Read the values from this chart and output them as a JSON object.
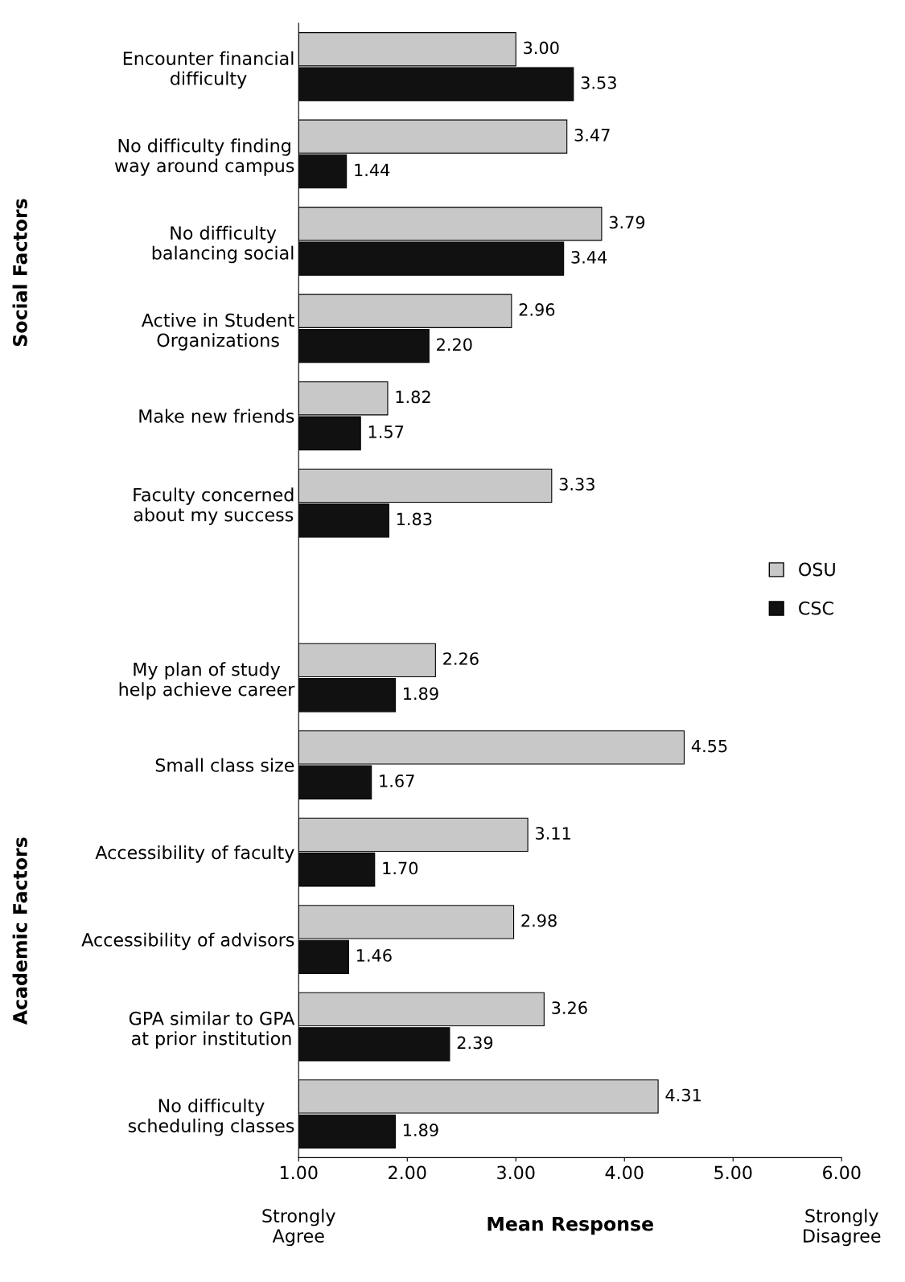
{
  "chart_data": {
    "type": "bar",
    "orientation": "horizontal",
    "xlabel": "Mean Response",
    "categories": [
      "Encounter financial\ndifficulty",
      "No difficulty finding\nway around campus",
      "No difficulty\nbalancing social",
      "Active in Student\nOrganizations",
      "Make new friends",
      "Faculty concerned\nabout my success",
      null,
      "My plan of study\nhelp achieve career",
      "Small class size",
      "Accessibility of faculty",
      "Accessibility of advisors",
      "GPA similar to GPA\nat prior institution",
      "No difficulty\nscheduling classes"
    ],
    "series": [
      {
        "name": "OSU",
        "color": "#c8c8c8",
        "values": [
          3.0,
          3.47,
          3.79,
          2.96,
          1.82,
          3.33,
          null,
          2.26,
          4.55,
          3.11,
          2.98,
          3.26,
          4.31
        ],
        "value_labels": [
          "3.00",
          "3.47",
          "3.79",
          "2.96",
          "1.82",
          "3.33",
          null,
          "2.26",
          "4.55",
          "3.11",
          "2.98",
          "3.26",
          "4.31"
        ]
      },
      {
        "name": "CSC",
        "color": "#111111",
        "values": [
          3.53,
          1.44,
          3.44,
          2.2,
          1.57,
          1.83,
          null,
          1.89,
          1.67,
          1.7,
          1.46,
          2.39,
          1.89
        ],
        "value_labels": [
          "3.53",
          "1.44",
          "3.44",
          "2.20",
          "1.57",
          "1.83",
          null,
          "1.89",
          "1.67",
          "1.70",
          "1.46",
          "2.39",
          "1.89"
        ]
      }
    ],
    "xlim": [
      1,
      6
    ],
    "xticks": [
      {
        "value": 1,
        "label": "1.00"
      },
      {
        "value": 2,
        "label": "2.00"
      },
      {
        "value": 3,
        "label": "3.00"
      },
      {
        "value": 4,
        "label": "4.00"
      },
      {
        "value": 5,
        "label": "5.00"
      },
      {
        "value": 6,
        "label": "6.00"
      }
    ],
    "annotations": [
      "Strongly\nAgree",
      "Strongly\nDisagree",
      "Social Factors",
      "Academic Factors"
    ],
    "grid": false,
    "legend": "right"
  }
}
